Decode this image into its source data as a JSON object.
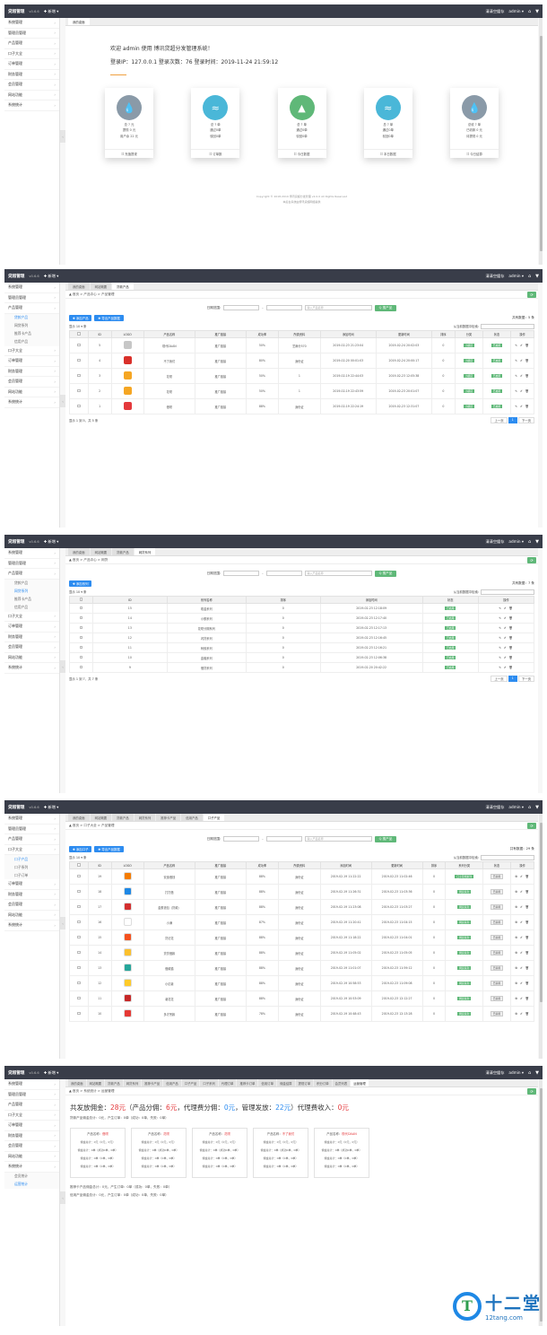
{
  "app": {
    "logo": "贷超管理",
    "version": "v0.6.6",
    "new_btn": "✚ 新增 ▾",
    "clear_cache": "清清空缓存",
    "user": "admin ▾",
    "home_icon": "home-icon",
    "menu_icon": "more-icon"
  },
  "sidebar": {
    "items": [
      "系统管理",
      "管理员管理",
      "产品管理",
      "口子大全",
      "订单管理",
      "财务管理",
      "会员管理",
      "网站功能",
      "系统统计"
    ]
  },
  "panel1": {
    "tabs": [
      "我的桌面"
    ],
    "welcome": "欢迎 admin 使用 博讯贷超分发管理系统！",
    "login_info": "登录IP：127.0.0.1 登录次数：76 登录时间：2019-11-24 21:59:12",
    "cards": [
      {
        "l1": "总 ? 元",
        "l2": "提现 0 元",
        "l3": "用户余 22 元",
        "foot": "充值提现",
        "color": "#8a9aa8"
      },
      {
        "l1": "总 ? 单",
        "l2": "通过0单",
        "l3": "驳回0单",
        "foot": "订单数",
        "color": "#4ab7d8"
      },
      {
        "l1": "总 ? 单",
        "l2": "通过0单",
        "l3": "驳回0单",
        "foot": "今日数据",
        "color": "#5fb878"
      },
      {
        "l1": "总 ? 单",
        "l2": "通过0单",
        "l3": "驳回0单",
        "foot": "本日数据",
        "color": "#4ab7d8"
      },
      {
        "l1": "总收 ? 单",
        "l2": "已收款 0 元",
        "l3": "待提现 0 元",
        "foot": "今日结算",
        "color": "#8a9aa8"
      }
    ],
    "copyright": "Copyright © 2018-2019 博讯贷超分发管理 v2.0.0 All Rights Reserved",
    "copyright2": "本后台系统由博讯贷超网络提供"
  },
  "panel2": {
    "tabs": [
      "我的桌面",
      "网站概要",
      "贷款产品"
    ],
    "crumb": "▲ 首页 > 产品中心 > 产品管理",
    "date_label": "日期范围:",
    "name_placeholder": "输入产品名称",
    "search_btn": "Q 搜产品",
    "add_btn": "✚ 添加产品",
    "export_btn": "✚ 导出产品数据",
    "total": "共有数据：5 条",
    "show": "显示 10 ▾ 条",
    "search_label": "从当前数据中检索:",
    "sub_items": [
      "贷款产品",
      "网贷系列",
      "推荐卡产品",
      "信用产品"
    ],
    "headers": [
      "",
      "ID",
      "LOGO",
      "产品名称",
      "推广链接",
      "成功率",
      "所需资料",
      "添加时间",
      "更新时间",
      "排序",
      "分类",
      "状态",
      "操作"
    ],
    "rows": [
      {
        "id": "5",
        "name": "现代DAAN",
        "link": "推广链接",
        "rate": "50%",
        "need": "芝麻分570",
        "add": "2019-02-23 21:23:04",
        "upd": "2019-02-24 20:02:03",
        "sort": "0",
        "cat": "小额贷",
        "state": "已启用",
        "logo": "#c7c7c7"
      },
      {
        "id": "4",
        "name": "不了我们",
        "link": "推广链接",
        "rate": "80%",
        "need": "身份证",
        "add": "2019-02-20 00:01:03",
        "upd": "2019-02-24 20:00:17",
        "sort": "0",
        "cat": "小额贷",
        "state": "已启用",
        "logo": "#d9302a"
      },
      {
        "id": "3",
        "name": "花呗",
        "link": "推广链接",
        "rate": "50%",
        "need": "1",
        "add": "2019-02-19 22:44:03",
        "upd": "2019-02-23 12:05:38",
        "sort": "0",
        "cat": "小额贷",
        "state": "已启用",
        "logo": "#f5a623"
      },
      {
        "id": "2",
        "name": "花呗",
        "link": "推广链接",
        "rate": "50%",
        "need": "1",
        "add": "2019-02-19 22:43:59",
        "upd": "2019-02-23 20:01:07",
        "sort": "0",
        "cat": "小额贷",
        "state": "已启用",
        "logo": "#f5a623"
      },
      {
        "id": "1",
        "name": "借呗",
        "link": "推广链接",
        "rate": "88%",
        "need": "身份证",
        "add": "2019-02-19 22:24:19",
        "upd": "2019-02-23 12:31:07",
        "sort": "0",
        "cat": "小额贷",
        "state": "已启用",
        "logo": "#e4393c"
      }
    ],
    "ops": "✎ ✐ 🗑",
    "page_info": "显示 1 到 5，共 5 条",
    "prev": "上一页",
    "page": "1",
    "next": "下一页"
  },
  "panel3": {
    "tabs": [
      "我的桌面",
      "网站概要",
      "贷款产品",
      "网贷系列"
    ],
    "crumb": "▲ 首页 > 产品中心 > 网贷",
    "add_btn": "✚ 添加系列",
    "total": "共有数据：7 条",
    "sub_items": [
      "贷款产品",
      "网贷系列",
      "推荐卡产品",
      "信用产品"
    ],
    "headers": [
      "",
      "ID",
      "系列名称",
      "排序",
      "添加时间",
      "状态",
      "操作"
    ],
    "rows": [
      {
        "id": "15",
        "name": "现金系列",
        "sort": "0",
        "add": "2019-02-23 12:18:09",
        "state": "已启用"
      },
      {
        "id": "14",
        "name": "小额系列",
        "sort": "0",
        "add": "2019-02-23 12:17:40",
        "state": "已启用"
      },
      {
        "id": "13",
        "name": "花呗分期系列",
        "sort": "0",
        "add": "2019-02-23 12:17:13",
        "state": "已启用"
      },
      {
        "id": "12",
        "name": "闪贷系列",
        "sort": "0",
        "add": "2019-02-23 12:16:45",
        "state": "已启用"
      },
      {
        "id": "11",
        "name": "蚂蚁系列",
        "sort": "0",
        "add": "2019-02-23 12:16:21",
        "state": "已启用"
      },
      {
        "id": "10",
        "name": "金融系列",
        "sort": "0",
        "add": "2019-02-23 12:06:38",
        "state": "已启用"
      },
      {
        "id": "9",
        "name": "借贷系列",
        "sort": "0",
        "add": "2019-02-20 20:42:22",
        "state": "已启用"
      }
    ],
    "ops": "✎ ✐ 🗑",
    "page_info": "显示 1 到 7，共 7 条",
    "prev": "上一页",
    "page": "1",
    "next": "下一页"
  },
  "panel4": {
    "tabs": [
      "我的桌面",
      "网站概要",
      "贷款产品",
      "网贷系列",
      "推荐卡产品",
      "信用产品",
      "口子产品"
    ],
    "crumb": "▲ 首页 > 口子大全 > 产品管理",
    "add_btn": "✚ 添加口子",
    "export_btn": "✚ 导出产品数据",
    "total": "共有数据：29 条",
    "sub_items": [
      "口子产品",
      "口子系列",
      "口子订单"
    ],
    "headers": [
      "",
      "ID",
      "LOGO",
      "产品名称",
      "推广链接",
      "成功率",
      "所需资料",
      "添加时间",
      "更新时间",
      "排序",
      "系列分类",
      "状态",
      "操作"
    ],
    "rows": [
      {
        "id": "19",
        "name": "安逸借钱",
        "rate": "88%",
        "need": "身份证",
        "add": "2019-02-19 11:22:22",
        "upd": "2019-02-23 11:02:46",
        "sort": "0",
        "cat": "口子花呗系列",
        "logo": "#f57c00"
      },
      {
        "id": "18",
        "name": "打打借",
        "rate": "88%",
        "need": "身份证",
        "add": "2019-02-19 11:26:31",
        "upd": "2019-02-23 11:03:36",
        "sort": "0",
        "cat": "网贷系列",
        "logo": "#1e88e5"
      },
      {
        "id": "17",
        "name": "金蛋钱包（贷款）",
        "rate": "88%",
        "need": "身份证",
        "add": "2019-02-19 11:23:08",
        "upd": "2019-02-23 11:03:27",
        "sort": "0",
        "cat": "网贷系列",
        "logo": "#d32f2f"
      },
      {
        "id": "16",
        "name": "小满",
        "rate": "87%",
        "need": "身份证",
        "add": "2019-02-19 11:20:41",
        "upd": "2019-02-23 11:04:15",
        "sort": "0",
        "cat": "网贷系列",
        "logo": "#ffffff"
      },
      {
        "id": "15",
        "name": "贷记花",
        "rate": "88%",
        "need": "身份证",
        "add": "2019-02-19 11:18:22",
        "upd": "2019-02-23 11:04:01",
        "sort": "0",
        "cat": "网贷系列",
        "logo": "#f4511e"
      },
      {
        "id": "14",
        "name": "贷贷借款",
        "rate": "88%",
        "need": "身份证",
        "add": "2019-02-19 11:05:02",
        "upd": "2019-02-23 11:05:05",
        "sort": "0",
        "cat": "网贷系列",
        "logo": "#fbc02d"
      },
      {
        "id": "13",
        "name": "借款猫",
        "rate": "88%",
        "need": "身份证",
        "add": "2019-02-19 11:01:07",
        "upd": "2019-02-23 11:59:12",
        "sort": "0",
        "cat": "网贷系列",
        "logo": "#26a69a"
      },
      {
        "id": "12",
        "name": "小红薯",
        "rate": "88%",
        "need": "身份证",
        "add": "2019-02-19 10:58:53",
        "upd": "2019-02-23 11:09:08",
        "sort": "0",
        "cat": "网贷系列",
        "logo": "#ffca28"
      },
      {
        "id": "11",
        "name": "薯花花",
        "rate": "88%",
        "need": "身份证",
        "add": "2019-02-19 10:53:09",
        "upd": "2019-02-23 12:12:27",
        "sort": "0",
        "cat": "网贷系列",
        "logo": "#c62828"
      },
      {
        "id": "10",
        "name": "多才赞款",
        "rate": "78%",
        "need": "身份证",
        "add": "2019-02-19 10:48:43",
        "upd": "2019-02-23 12:13:28",
        "sort": "0",
        "cat": "网贷系列",
        "logo": "#e53935"
      }
    ],
    "state": "已禁用",
    "ops": "⚙ ✐ 🗑"
  },
  "panel5": {
    "tabs": [
      "我的桌面",
      "网站概要",
      "贷款产品",
      "网贷系列",
      "推荐卡产品",
      "信用产品",
      "口子产品",
      "口子系列",
      "代理订单",
      "推荐卡订单",
      "信用订单",
      "佣金结算",
      "提现订单",
      "积分订单",
      "会员列表",
      "运营管理"
    ],
    "crumb": "▲ 首页 > 系统统计 > 运营管理",
    "sub_items": [
      "会员统计",
      "运营统计"
    ],
    "summary_a": "共发放佣金：",
    "total_comm": "28元",
    "summary_b": "（产品分佣：",
    "product_comm": "6元",
    "summary_c": "，代理费分佣：",
    "agent_comm": "0元",
    "summary_d": "，管理发放：",
    "admin_comm": "22元",
    "summary_e": "）代理费收入：",
    "agent_income": "0元",
    "line1": "贷款产品佣金总计：0元，产生订单：0单（成功：0单，失败：0单）",
    "boxes": [
      {
        "title": "产品名称：",
        "name": "借呗"
      },
      {
        "title": "产品名称：",
        "name": "花呗"
      },
      {
        "title": "产品名称：",
        "name": "花呗"
      },
      {
        "title": "产品名称：",
        "name": "不了我们"
      },
      {
        "title": "产品名称：",
        "name": "现代DAAN"
      }
    ],
    "box_rows": [
      "佣金总计：0元（0元，0元）",
      "佣金总计：0单（成功0单，0单）",
      "佣金总计：0单（0单，0单）",
      "佣金总计：0单（0单，0单）"
    ],
    "line2": "推荐卡产品佣金总计：0元，产生订单：0单（成功：0单，失败：0单）",
    "line3": "信用产品佣金总计：0元，产生订单：0单（成功：0单，失败：0单）"
  },
  "watermark": {
    "glyph": "T",
    "title": "十二堂",
    "url": "12tang.com"
  }
}
